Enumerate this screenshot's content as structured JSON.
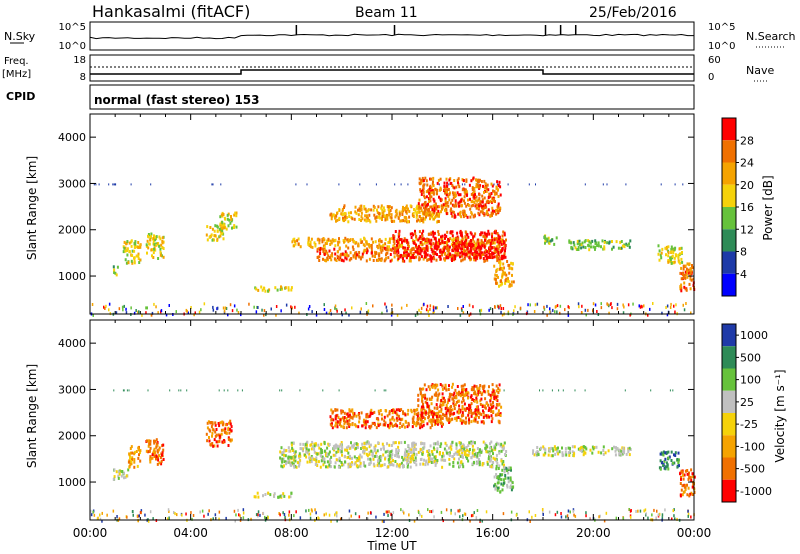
{
  "header": {
    "station": "Hankasalmi (fitACF)",
    "beam": "Beam 11",
    "date": "25/Feb/2016"
  },
  "summary": {
    "nsky_label": "N.Sky",
    "nsky_ticks": [
      "10^5",
      "10^0"
    ],
    "nsearch_label": "N.Search",
    "nsearch_ticks": [
      "10^5",
      "10^0"
    ],
    "freq_label": "Freq.",
    "freq_unit": "[MHz]",
    "freq_ticks": [
      "18",
      "8"
    ],
    "nave_label": "Nave",
    "nave_ticks": [
      "60",
      "0"
    ],
    "cpid_label": "CPID",
    "cpid_value": "normal (fast stereo) 153",
    "nsky_spikes_hours": [
      8.2,
      12.1,
      18.1,
      18.7,
      19.3
    ],
    "freq_step_hours": [
      6.0,
      18.0
    ]
  },
  "chart_data": [
    {
      "type": "heatmap",
      "name": "power",
      "ylabel": "Slant Range [km]",
      "xlabel": "",
      "xlim": [
        0,
        24
      ],
      "ylim": [
        180,
        4500
      ],
      "y_ticks": [
        "1000",
        "2000",
        "3000",
        "4000"
      ],
      "colorbar": {
        "label": "Power [dB]",
        "ticks": [
          "4",
          "8",
          "12",
          "16",
          "20",
          "24",
          "28"
        ],
        "range": [
          0,
          32
        ],
        "colors": [
          "#0000ff",
          "#1d3aa8",
          "#2e8b57",
          "#66c23b",
          "#f5d20a",
          "#f5a300",
          "#f07000",
          "#ff0000"
        ]
      },
      "regions": [
        {
          "t0": 0.9,
          "t1": 1.1,
          "r0": 1050,
          "r1": 1250,
          "level": 3
        },
        {
          "t0": 1.3,
          "t1": 2.0,
          "r0": 1300,
          "r1": 1800,
          "level": 4
        },
        {
          "t0": 2.2,
          "t1": 2.9,
          "r0": 1400,
          "r1": 1950,
          "level": 4
        },
        {
          "t0": 4.6,
          "t1": 5.3,
          "r0": 1800,
          "r1": 2150,
          "level": 4
        },
        {
          "t0": 5.1,
          "t1": 5.8,
          "r0": 2000,
          "r1": 2400,
          "level": 4
        },
        {
          "t0": 6.5,
          "t1": 8.0,
          "r0": 700,
          "r1": 800,
          "level": 4
        },
        {
          "t0": 8.0,
          "t1": 16.4,
          "r0": 1650,
          "r1": 1850,
          "level": 5
        },
        {
          "t0": 9.0,
          "t1": 16.5,
          "r0": 1350,
          "r1": 1650,
          "level": 6
        },
        {
          "t0": 12.0,
          "t1": 16.5,
          "r0": 1400,
          "r1": 2000,
          "level": 7
        },
        {
          "t0": 9.5,
          "t1": 14.0,
          "r0": 2200,
          "r1": 2550,
          "level": 5
        },
        {
          "t0": 13.0,
          "t1": 16.3,
          "r0": 2300,
          "r1": 3150,
          "level": 6
        },
        {
          "t0": 16.0,
          "t1": 16.8,
          "r0": 800,
          "r1": 1350,
          "level": 5
        },
        {
          "t0": 18.0,
          "t1": 18.6,
          "r0": 1700,
          "r1": 1900,
          "level": 3
        },
        {
          "t0": 19.0,
          "t1": 21.5,
          "r0": 1600,
          "r1": 1800,
          "level": 3
        },
        {
          "t0": 22.5,
          "t1": 23.5,
          "r0": 1300,
          "r1": 1700,
          "level": 4
        },
        {
          "t0": 23.4,
          "t1": 24.0,
          "r0": 700,
          "r1": 1300,
          "level": 6
        }
      ]
    },
    {
      "type": "heatmap",
      "name": "velocity",
      "ylabel": "Slant Range [km]",
      "xlabel": "Time UT",
      "xlim": [
        0,
        24
      ],
      "ylim": [
        180,
        4500
      ],
      "y_ticks": [
        "1000",
        "2000",
        "3000",
        "4000"
      ],
      "x_ticks": [
        "00:00",
        "04:00",
        "08:00",
        "12:00",
        "16:00",
        "20:00",
        "00:00"
      ],
      "colorbar": {
        "label": "Velocity [m s⁻¹]",
        "ticks": [
          "1000",
          "500",
          "100",
          "25",
          "-25",
          "-100",
          "-500",
          "-1000"
        ],
        "colors": [
          "#1f3aa8",
          "#2e8b57",
          "#66c23b",
          "#c0c0c0",
          "#f5d20a",
          "#f5a300",
          "#f07000",
          "#ff0000"
        ]
      },
      "regions": [
        {
          "t0": 0.9,
          "t1": 1.5,
          "r0": 1050,
          "r1": 1300,
          "level": 3
        },
        {
          "t0": 1.5,
          "t1": 2.0,
          "r0": 1350,
          "r1": 1800,
          "level": 5
        },
        {
          "t0": 2.2,
          "t1": 2.9,
          "r0": 1400,
          "r1": 1950,
          "level": 6
        },
        {
          "t0": 4.6,
          "t1": 5.6,
          "r0": 1800,
          "r1": 2350,
          "level": 6
        },
        {
          "t0": 6.5,
          "t1": 8.0,
          "r0": 700,
          "r1": 800,
          "level": 3
        },
        {
          "t0": 7.5,
          "t1": 16.5,
          "r0": 1350,
          "r1": 1900,
          "level": 3
        },
        {
          "t0": 9.5,
          "t1": 14.0,
          "r0": 2200,
          "r1": 2600,
          "level": 6
        },
        {
          "t0": 13.0,
          "t1": 16.3,
          "r0": 2300,
          "r1": 3150,
          "level": 6
        },
        {
          "t0": 16.0,
          "t1": 16.8,
          "r0": 800,
          "r1": 1350,
          "level": 2
        },
        {
          "t0": 17.5,
          "t1": 21.5,
          "r0": 1600,
          "r1": 1800,
          "level": 3
        },
        {
          "t0": 22.6,
          "t1": 23.4,
          "r0": 1300,
          "r1": 1700,
          "level": 1
        },
        {
          "t0": 23.4,
          "t1": 24.0,
          "r0": 700,
          "r1": 1300,
          "level": 6
        }
      ]
    }
  ]
}
